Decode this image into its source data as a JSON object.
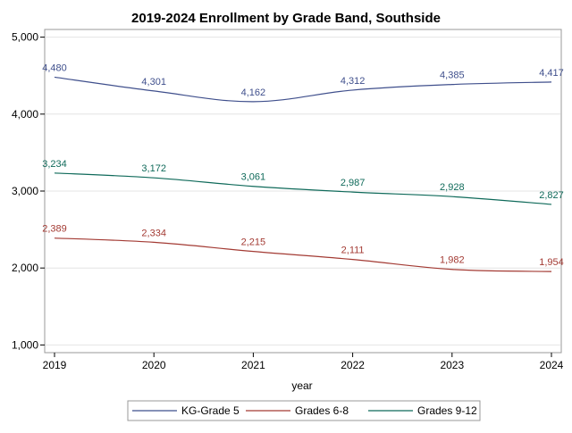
{
  "chart_data": {
    "type": "line",
    "title": "2019-2024 Enrollment by Grade Band, Southside",
    "xlabel": "year",
    "ylabel": "",
    "x": [
      2019,
      2020,
      2021,
      2022,
      2023,
      2024
    ],
    "x_tick_labels": [
      "2019",
      "2020",
      "2021",
      "2022",
      "2023",
      "2024"
    ],
    "y_ticks": [
      1000,
      2000,
      3000,
      4000,
      5000
    ],
    "y_tick_labels": [
      "1,000",
      "2,000",
      "3,000",
      "4,000",
      "5,000"
    ],
    "xlim": [
      2019,
      2024
    ],
    "ylim": [
      900,
      5100
    ],
    "grid": "horizontal",
    "legend_position": "bottom",
    "series": [
      {
        "name": "KG-Grade 5",
        "color": "#3f4f8c",
        "values": [
          4480,
          4301,
          4162,
          4312,
          4385,
          4417
        ],
        "labels": [
          "4,480",
          "4,301",
          "4,162",
          "4,312",
          "4,385",
          "4,417"
        ]
      },
      {
        "name": "Grades 6-8",
        "color": "#a33a33",
        "values": [
          2389,
          2334,
          2215,
          2111,
          1982,
          1954
        ],
        "labels": [
          "2,389",
          "2,334",
          "2,215",
          "2,111",
          "1,982",
          "1,954"
        ]
      },
      {
        "name": "Grades 9-12",
        "color": "#0f6a5a",
        "values": [
          3234,
          3172,
          3061,
          2987,
          2928,
          2827
        ],
        "labels": [
          "3,234",
          "3,172",
          "3,061",
          "2,987",
          "2,928",
          "2,827"
        ]
      }
    ]
  }
}
